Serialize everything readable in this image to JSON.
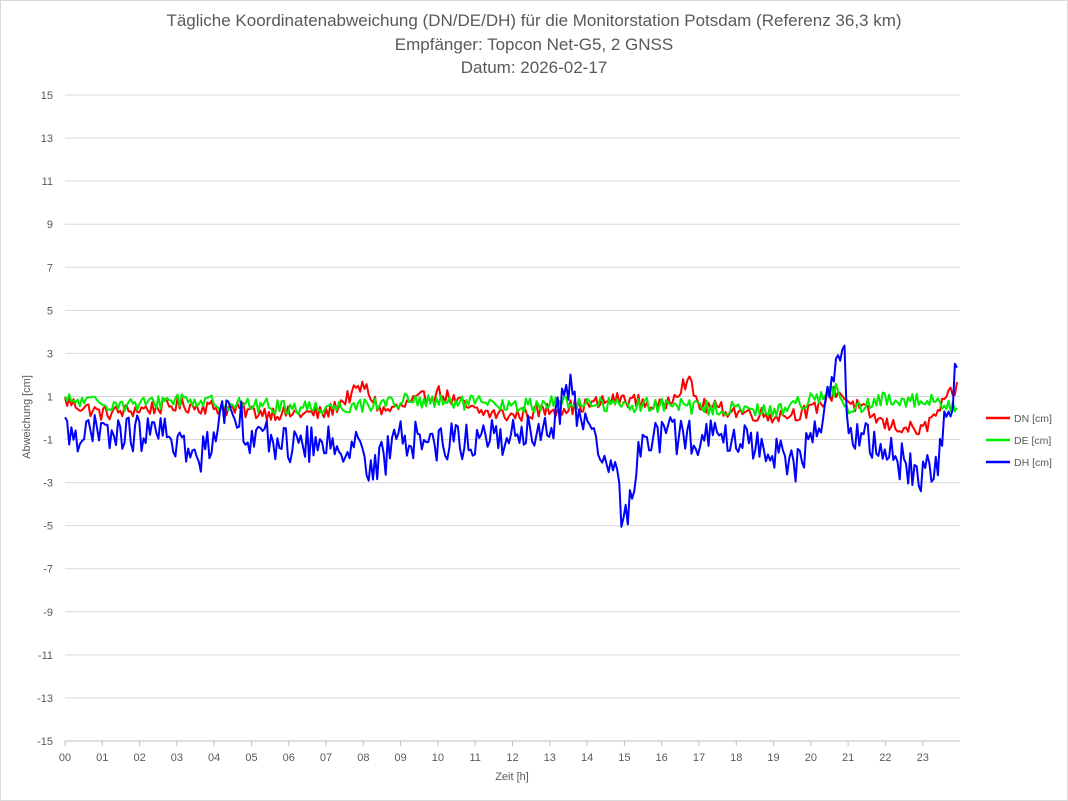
{
  "chart_data": {
    "type": "line",
    "title": "Tägliche Koordinatenabweichung (DN/DE/DH) für die Monitorstation Potsdam (Referenz 36,3 km)",
    "subtitle_lines": [
      "Empfänger: Topcon Net-G5, 2 GNSS",
      "Datum: 2026-02-17"
    ],
    "xlabel": "Zeit [h]",
    "ylabel": "Abweichung [cm]",
    "xlim": [
      0,
      24
    ],
    "ylim": [
      -15,
      15
    ],
    "x_ticks": [
      "00",
      "01",
      "02",
      "03",
      "04",
      "05",
      "06",
      "07",
      "08",
      "09",
      "10",
      "11",
      "12",
      "13",
      "14",
      "15",
      "16",
      "17",
      "18",
      "19",
      "20",
      "21",
      "22",
      "23"
    ],
    "y_ticks": [
      "15",
      "13",
      "11",
      "9",
      "7",
      "5",
      "3",
      "1",
      "-1",
      "-3",
      "-5",
      "-7",
      "-9",
      "-11",
      "-13",
      "-15"
    ],
    "grid": "horizontal",
    "legend_position": "right",
    "series": [
      {
        "name": "DN [cm]",
        "color": "#ff0000",
        "x": [
          0,
          1,
          2,
          3,
          4,
          5,
          6,
          7,
          8,
          8.5,
          9,
          10,
          11,
          12,
          13,
          14,
          15,
          16,
          16.7,
          17,
          18,
          19,
          20,
          20.7,
          21,
          22,
          23,
          23.9
        ],
        "y": [
          0.8,
          0.2,
          0.4,
          0.6,
          0.5,
          0.3,
          0.2,
          0.2,
          1.5,
          0.3,
          0.5,
          1.2,
          0.3,
          0.1,
          0.4,
          0.6,
          0.9,
          0.5,
          1.8,
          0.6,
          0.3,
          0.1,
          0.3,
          1.3,
          0.8,
          -0.3,
          -0.6,
          1.4
        ]
      },
      {
        "name": "DE [cm]",
        "color": "#00ee00",
        "x": [
          0,
          1,
          2,
          3,
          4,
          5,
          6,
          7,
          8,
          9,
          10,
          11,
          12,
          13,
          14,
          15,
          16,
          17,
          18,
          19,
          20,
          20.7,
          21,
          22,
          23,
          23.9
        ],
        "y": [
          0.8,
          0.7,
          0.6,
          0.9,
          0.7,
          0.6,
          0.5,
          0.5,
          0.6,
          0.8,
          0.7,
          0.7,
          0.5,
          0.7,
          0.7,
          0.6,
          0.6,
          0.5,
          0.4,
          0.3,
          0.9,
          1.3,
          0.2,
          0.9,
          0.8,
          0.6
        ]
      },
      {
        "name": "DH [cm]",
        "color": "#0000ff",
        "x": [
          0,
          1,
          2,
          3,
          3.5,
          4,
          4.4,
          5,
          6,
          7,
          8,
          8.1,
          9,
          10,
          11,
          12,
          13,
          13.5,
          14,
          14.8,
          15,
          15.5,
          16,
          17,
          18,
          19,
          19.5,
          20,
          20.7,
          20.9,
          21,
          22,
          22.9,
          23.3,
          23.6,
          23.9
        ],
        "y": [
          -0.6,
          -0.8,
          -0.7,
          -0.9,
          -2.2,
          -0.6,
          0.9,
          -0.9,
          -1.2,
          -1.3,
          -1.0,
          -2.8,
          -0.9,
          -1.1,
          -1.0,
          -0.8,
          -0.7,
          1.6,
          -0.9,
          -2.8,
          -5.2,
          -0.6,
          -0.8,
          -0.9,
          -1.0,
          -1.4,
          -2.4,
          -1.2,
          2.4,
          3.3,
          -0.8,
          -1.5,
          -2.6,
          -2.6,
          -0.3,
          1.9
        ]
      }
    ]
  }
}
